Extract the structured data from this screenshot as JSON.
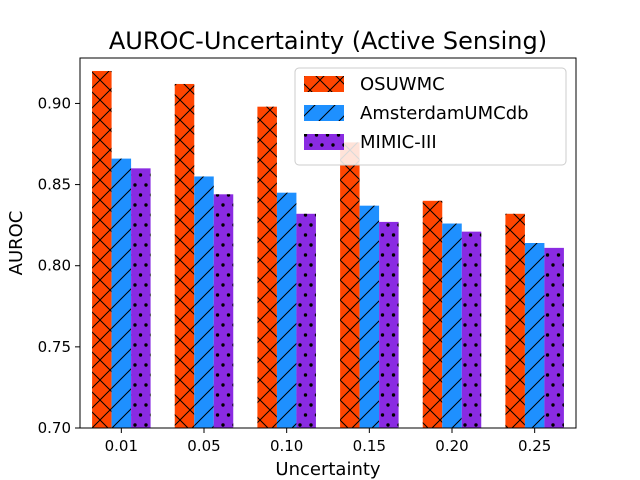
{
  "chart_data": {
    "type": "bar",
    "title": "AUROC-Uncertainty (Active Sensing)",
    "xlabel": "Uncertainty",
    "ylabel": "AUROC",
    "categories": [
      "0.01",
      "0.05",
      "0.10",
      "0.15",
      "0.20",
      "0.25"
    ],
    "ylim": [
      0.7,
      0.928
    ],
    "yticks": [
      "0.70",
      "0.75",
      "0.80",
      "0.85",
      "0.90"
    ],
    "grid": false,
    "legend_position": "top-right",
    "series": [
      {
        "name": "OSUWMC",
        "color": "#ff4500",
        "hatch": "x",
        "values": [
          0.92,
          0.912,
          0.898,
          0.876,
          0.84,
          0.832
        ]
      },
      {
        "name": "AmsterdamUMCdb",
        "color": "#1e90ff",
        "hatch": "/",
        "values": [
          0.866,
          0.855,
          0.845,
          0.837,
          0.826,
          0.814
        ]
      },
      {
        "name": "MIMIC-III",
        "color": "#8a2be2",
        "hatch": ".",
        "values": [
          0.86,
          0.844,
          0.832,
          0.827,
          0.821,
          0.811
        ]
      }
    ]
  }
}
